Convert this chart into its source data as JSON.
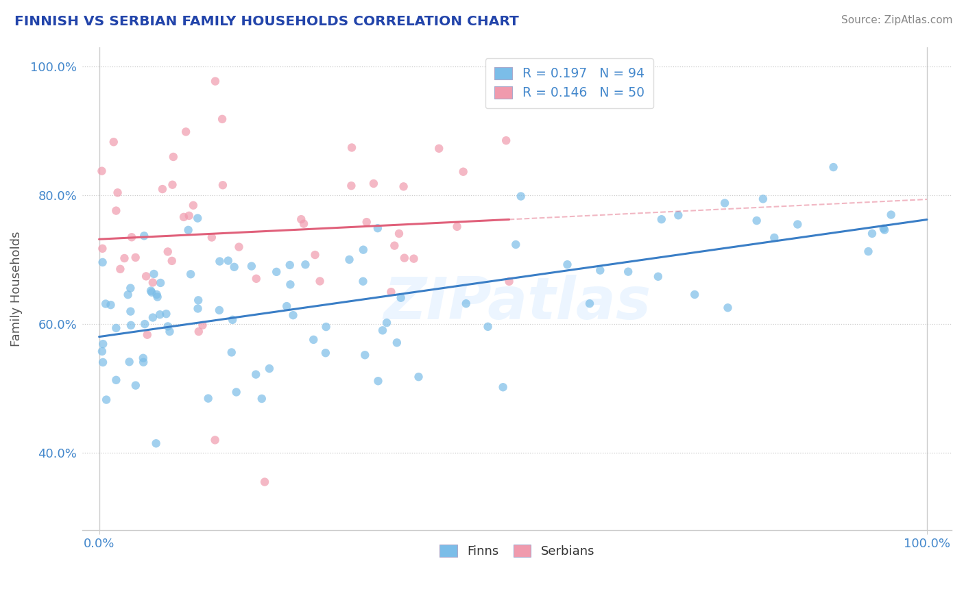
{
  "title": "FINNISH VS SERBIAN FAMILY HOUSEHOLDS CORRELATION CHART",
  "source": "Source: ZipAtlas.com",
  "ylabel": "Family Households",
  "finns_R": 0.197,
  "finns_N": 94,
  "serbians_R": 0.146,
  "serbians_N": 50,
  "finns_color": "#7BBDE8",
  "serbians_color": "#F09AAD",
  "trend_finns_color": "#3A7EC6",
  "trend_serbians_color": "#E0607A",
  "trend_finns_dashed_color": "#C0D8F0",
  "ylim_low": 0.28,
  "ylim_high": 1.03,
  "xlim_low": -0.02,
  "xlim_high": 1.03,
  "ytick_vals": [
    0.4,
    0.6,
    0.8,
    1.0
  ],
  "ytick_labels": [
    "40.0%",
    "60.0%",
    "80.0%",
    "100.0%"
  ],
  "watermark_text": "ZIPatlas",
  "background_color": "#ffffff",
  "title_color": "#2244AA",
  "source_color": "#888888",
  "legend_label_color": "#4488CC",
  "legend_finn_text": "R = 0.197   N = 94",
  "legend_serbian_text": "R = 0.146   N = 50",
  "bottom_legend_finns": "Finns",
  "bottom_legend_serbians": "Serbians"
}
